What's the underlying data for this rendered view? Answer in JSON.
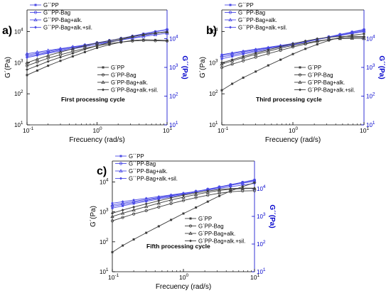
{
  "colors": {
    "g1": "#3d3d3d",
    "g2": "#4a4ae6",
    "axis_left": "#000000",
    "axis_right": "#0000cc"
  },
  "chart_data": [
    {
      "type": "line",
      "panel_label": "a)",
      "annotation": "First processing cycle",
      "xlabel": "Frecuency (rad/s)",
      "ylabel_left": "G´(Pa)",
      "ylabel_right": "G´´(Pa)",
      "xscale": "log",
      "yscale": "log",
      "xlim": [
        0.1,
        10
      ],
      "ylim_left": [
        10,
        50000
      ],
      "ylim_right": [
        10,
        100000
      ],
      "x_ticks": [
        "10^-1",
        "10^0",
        "10^1"
      ],
      "y_ticks_left": [
        "10^1",
        "10^2",
        "10^3",
        "10^4"
      ],
      "y_ticks_right": [
        "10^1",
        "10^2",
        "10^3",
        "10^4"
      ],
      "legend_g2_position": "top-left",
      "legend_g1_position": "center-right",
      "legend_g2": [
        "G´´PP",
        "G´´PP-Bag",
        "G´´PP-Bag+alk.",
        "G´´PP-Bag+alk.+sil."
      ],
      "legend_g1": [
        "G´PP",
        "G´PP-Bag",
        "G´PP-Bag+alk.",
        "G´PP-Bag+alk.+sil."
      ],
      "x": [
        0.1,
        0.14,
        0.2,
        0.3,
        0.45,
        0.67,
        1,
        1.5,
        2.2,
        3.2,
        4.6,
        6.8,
        10
      ],
      "series_g1": [
        [
          400,
          560,
          800,
          1150,
          1600,
          2200,
          3000,
          3800,
          4600,
          5200,
          5500,
          5400,
          5200
        ],
        [
          800,
          1050,
          1400,
          1800,
          2300,
          2900,
          3500,
          4100,
          4600,
          5000,
          5200,
          5100,
          5000
        ],
        [
          1000,
          1300,
          1700,
          2200,
          2800,
          3500,
          4300,
          5100,
          6000,
          7000,
          8000,
          9000,
          9800
        ],
        [
          600,
          800,
          1100,
          1500,
          2000,
          2700,
          3500,
          4500,
          5600,
          6800,
          8000,
          9000,
          9800
        ]
      ],
      "series_g2": [
        [
          2400,
          2800,
          3300,
          4000,
          4800,
          5800,
          7000,
          8500,
          10200,
          12300,
          14800,
          17800,
          21000
        ],
        [
          2700,
          3100,
          3600,
          4300,
          5100,
          6000,
          7200,
          8600,
          10200,
          12200,
          14500,
          17300,
          20500
        ],
        [
          3000,
          3400,
          3900,
          4500,
          5200,
          6000,
          6900,
          7900,
          9000,
          10300,
          11800,
          13600,
          15500
        ],
        [
          2200,
          2600,
          3100,
          3700,
          4400,
          5300,
          6300,
          7500,
          9000,
          10700,
          12700,
          15100,
          18000
        ]
      ]
    },
    {
      "type": "line",
      "panel_label": "b)",
      "annotation": "Third processing cycle",
      "xlabel": "Frecuency (rad/s)",
      "ylabel_left": "G´(Pa)",
      "ylabel_right": "G´´(Pa)",
      "xscale": "log",
      "yscale": "log",
      "xlim": [
        0.1,
        10
      ],
      "ylim_left": [
        10,
        50000
      ],
      "ylim_right": [
        10,
        100000
      ],
      "x_ticks": [
        "10^-1",
        "10^0",
        "10^1"
      ],
      "y_ticks_left": [
        "10^1",
        "10^2",
        "10^3",
        "10^4"
      ],
      "y_ticks_right": [
        "10^1",
        "10^2",
        "10^3",
        "10^4"
      ],
      "legend_g2_position": "top-left",
      "legend_g1_position": "center-right",
      "legend_g2": [
        "G´´PP",
        "G´´PP-Bag",
        "G´´PP-Bag+alk.",
        "G´´PP-Bag+alk.+sil."
      ],
      "legend_g1": [
        "G´PP",
        "G´PP-Bag",
        "G´PP-Bag+alk.",
        "G´PP-Bag+alk.+sil."
      ],
      "x": [
        0.1,
        0.14,
        0.2,
        0.3,
        0.45,
        0.67,
        1,
        1.5,
        2.2,
        3.2,
        4.6,
        6.8,
        10
      ],
      "series_g1": [
        [
          130,
          210,
          330,
          520,
          820,
          1250,
          1900,
          2800,
          3900,
          5200,
          6500,
          7700,
          8500
        ],
        [
          700,
          900,
          1150,
          1500,
          1950,
          2500,
          3200,
          4000,
          4800,
          5600,
          6200,
          6500,
          6600
        ],
        [
          900,
          1150,
          1450,
          1850,
          2350,
          2950,
          3600,
          4300,
          5000,
          5600,
          6000,
          6100,
          6000
        ],
        [
          1000,
          1250,
          1600,
          2050,
          2600,
          3300,
          4100,
          5000,
          5900,
          6600,
          7000,
          7100,
          7000
        ]
      ],
      "series_g2": [
        [
          2000,
          2400,
          2900,
          3500,
          4200,
          5100,
          6200,
          7600,
          9300,
          11400,
          14000,
          17200,
          21000
        ],
        [
          2300,
          2700,
          3200,
          3800,
          4600,
          5500,
          6600,
          8000,
          9600,
          11600,
          14000,
          16900,
          20000
        ],
        [
          2600,
          3000,
          3500,
          4100,
          4800,
          5700,
          6700,
          7900,
          9400,
          11200,
          13300,
          15800,
          18500
        ],
        [
          2800,
          3200,
          3700,
          4300,
          5000,
          5800,
          6800,
          8000,
          9400,
          11000,
          12900,
          15200,
          17500
        ]
      ]
    },
    {
      "type": "line",
      "panel_label": "c)",
      "annotation": "Fifth processing cycle",
      "xlabel": "Frecuency (rad/s)",
      "ylabel_left": "G´(Pa)",
      "ylabel_right": "G´´(Pa)",
      "xscale": "log",
      "yscale": "log",
      "xlim": [
        0.1,
        10
      ],
      "ylim_left": [
        10,
        50000
      ],
      "ylim_right": [
        10,
        100000
      ],
      "x_ticks": [
        "10^-1",
        "10^0",
        "10^1"
      ],
      "y_ticks_left": [
        "10^1",
        "10^2",
        "10^3",
        "10^4"
      ],
      "y_ticks_right": [
        "10^1",
        "10^2",
        "10^3",
        "10^4"
      ],
      "legend_g2_position": "top-left",
      "legend_g1_position": "center-right",
      "legend_g2": [
        "G´´PP",
        "G´´PP-Bag",
        "G´´PP-Bag+alk.",
        "G´´PP-Bag+alk.+sil."
      ],
      "legend_g1": [
        "G´PP",
        "G´PP-Bag",
        "G´PP-Bag+alk.",
        "G´PP-Bag+alk.+sil."
      ],
      "x": [
        0.1,
        0.14,
        0.2,
        0.3,
        0.45,
        0.67,
        1,
        1.5,
        2.2,
        3.2,
        4.6,
        6.8,
        10
      ],
      "series_g1": [
        [
          45,
          75,
          120,
          200,
          330,
          540,
          880,
          1400,
          2200,
          3400,
          5000,
          7000,
          9500
        ],
        [
          500,
          650,
          850,
          1100,
          1450,
          1900,
          2400,
          3000,
          3600,
          4200,
          4700,
          5000,
          5100
        ],
        [
          700,
          900,
          1150,
          1500,
          1950,
          2500,
          3100,
          3800,
          4500,
          5200,
          5700,
          6000,
          6100
        ],
        [
          900,
          1150,
          1450,
          1850,
          2350,
          2950,
          3600,
          4300,
          5000,
          5600,
          6000,
          6200,
          6200
        ]
      ],
      "series_g2": [
        [
          2000,
          2400,
          2900,
          3500,
          4200,
          5100,
          6200,
          7600,
          9300,
          11400,
          14000,
          17200,
          21000
        ],
        [
          2300,
          2700,
          3200,
          3800,
          4600,
          5500,
          6600,
          8000,
          9600,
          11600,
          14000,
          16900,
          20000
        ],
        [
          2600,
          3000,
          3500,
          4100,
          4800,
          5700,
          6700,
          7900,
          9400,
          11200,
          13300,
          15800,
          18500
        ],
        [
          3000,
          3400,
          3900,
          4500,
          5200,
          6000,
          6900,
          7900,
          9000,
          10300,
          11800,
          13600,
          15500
        ]
      ]
    }
  ]
}
